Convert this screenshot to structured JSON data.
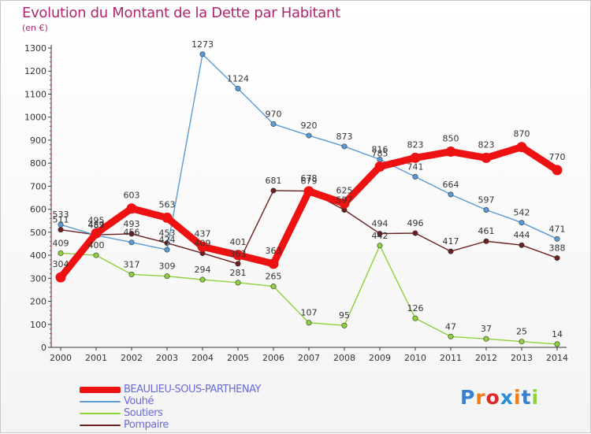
{
  "header": {
    "title": "Evolution du Montant de la Dette par Habitant",
    "unit": "(en €)"
  },
  "logo": {
    "text": "Proxiti"
  },
  "chart_data": {
    "type": "line",
    "title": "Evolution du Montant de la Dette par Habitant",
    "ylabel": "(en €)",
    "xlabel": "",
    "ylim": [
      0,
      1300
    ],
    "yticks": [
      0,
      100,
      200,
      300,
      400,
      500,
      600,
      700,
      800,
      900,
      1000,
      1100,
      1200,
      1300
    ],
    "grid": false,
    "legend_position": "bottom-left",
    "categories": [
      "2000",
      "2001",
      "2002",
      "2003",
      "2004",
      "2005",
      "2006",
      "2007",
      "2008",
      "2009",
      "2010",
      "2011",
      "2012",
      "2013",
      "2014"
    ],
    "series": [
      {
        "name": "BEAULIEU-SOUS-PARTHENAY",
        "color": "#ee1111",
        "values": [
          304,
          495,
          603,
          563,
          437,
          401,
          363,
          678,
          625,
          785,
          823,
          850,
          823,
          870,
          770
        ]
      },
      {
        "name": "Vouhé",
        "color": "#5b9bd5",
        "values": [
          533,
          487,
          456,
          424,
          1273,
          1124,
          970,
          920,
          873,
          816,
          741,
          664,
          597,
          542,
          471
        ]
      },
      {
        "name": "Soutiers",
        "color": "#8ed13a",
        "values": [
          409,
          400,
          317,
          309,
          294,
          281,
          265,
          107,
          95,
          442,
          126,
          47,
          37,
          25,
          14
        ]
      },
      {
        "name": "Pompaire",
        "color": "#6b2020",
        "values": [
          511,
          489,
          493,
          453,
          409,
          363,
          681,
          679,
          597,
          494,
          496,
          417,
          461,
          444,
          388
        ]
      }
    ]
  }
}
